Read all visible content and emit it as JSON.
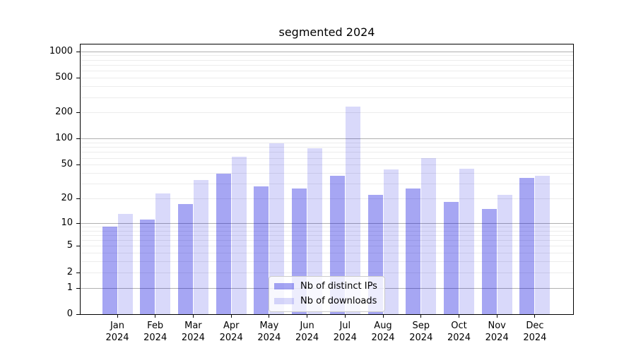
{
  "chart_data": {
    "type": "bar",
    "title": "segmented 2024",
    "y_scale": "log1p",
    "ylim": [
      0,
      1000
    ],
    "y_ticks": [
      0,
      1,
      2,
      5,
      10,
      20,
      50,
      100,
      200,
      500,
      1000
    ],
    "x_year": "2024",
    "categories": [
      "Jan",
      "Feb",
      "Mar",
      "Apr",
      "May",
      "Jun",
      "Jul",
      "Aug",
      "Sep",
      "Oct",
      "Nov",
      "Dec"
    ],
    "series": [
      {
        "key": "distinct-ips",
        "name": "Nb of distinct IPs",
        "color": "#0000dc",
        "alpha": 0.35,
        "values": [
          9,
          11,
          17,
          39,
          28,
          26,
          37,
          22,
          26,
          18,
          15,
          35
        ]
      },
      {
        "key": "downloads",
        "name": "Nb of downloads",
        "color": "#0000dc",
        "alpha": 0.15,
        "values": [
          13,
          23,
          33,
          62,
          89,
          77,
          233,
          44,
          60,
          45,
          22,
          37
        ]
      }
    ],
    "grid": {
      "major_values": [
        1,
        10,
        100,
        1000
      ],
      "major_color": "#b0b0b0",
      "minor_color": "#ececec"
    },
    "legend_position": "inside lower center"
  }
}
